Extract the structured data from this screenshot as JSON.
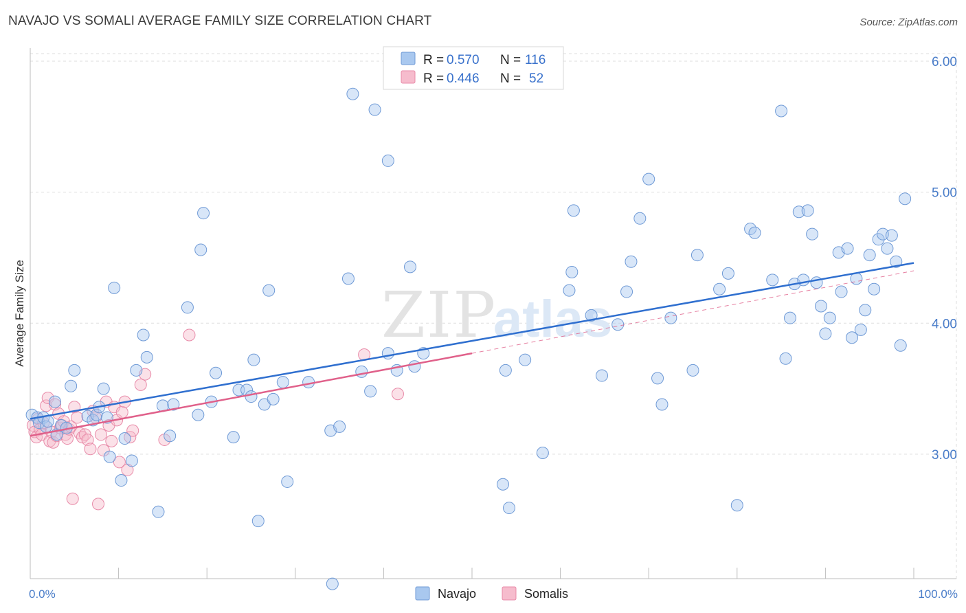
{
  "header": {
    "title": "NAVAJO VS SOMALI AVERAGE FAMILY SIZE CORRELATION CHART",
    "source": "Source: ZipAtlas.com"
  },
  "watermark": {
    "zip": "ZIP",
    "atlas": "atlas"
  },
  "colors": {
    "navajo_fill": "#a9c8ef",
    "navajo_stroke": "#6f9ad6",
    "navajo_line": "#2f6fcf",
    "somali_fill": "#f6bccd",
    "somali_stroke": "#e88aa8",
    "somali_line": "#e0608a",
    "grid": "#dddddd",
    "tick_text": "#4a7dc9"
  },
  "chart_data": {
    "type": "scatter",
    "title": "NAVAJO VS SOMALI AVERAGE FAMILY SIZE CORRELATION CHART",
    "xlabel": "",
    "ylabel": "Average Family Size",
    "xlim": [
      0,
      100
    ],
    "ylim": [
      2.05,
      6.1
    ],
    "x_tick_labels": [
      {
        "value": 0,
        "label": "0.0%"
      },
      {
        "value": 100,
        "label": "100.0%"
      }
    ],
    "y_ticks": [
      {
        "value": 3.0,
        "label": "3.00"
      },
      {
        "value": 4.0,
        "label": "4.00"
      },
      {
        "value": 5.0,
        "label": "5.00"
      },
      {
        "value": 6.0,
        "label": "6.00"
      }
    ],
    "legend": [
      {
        "r_label": "R =",
        "r": "0.570",
        "n_label": "N =",
        "n": "116"
      },
      {
        "r_label": "R =",
        "r": "0.446",
        "n_label": "N =",
        "n": "52"
      }
    ],
    "series": [
      {
        "name": "Navajo",
        "R": 0.57,
        "N": 116,
        "trend": {
          "x0": 0,
          "y0": 3.27,
          "x1": 100,
          "y1": 4.46
        },
        "points": [
          [
            0.2,
            3.3
          ],
          [
            0.8,
            3.28
          ],
          [
            1.0,
            3.24
          ],
          [
            1.5,
            3.28
          ],
          [
            1.8,
            3.21
          ],
          [
            2.0,
            3.25
          ],
          [
            2.8,
            3.4
          ],
          [
            3.0,
            3.15
          ],
          [
            3.5,
            3.22
          ],
          [
            4.1,
            3.2
          ],
          [
            4.6,
            3.52
          ],
          [
            5.0,
            3.64
          ],
          [
            6.5,
            3.29
          ],
          [
            7.1,
            3.26
          ],
          [
            7.5,
            3.3
          ],
          [
            7.8,
            3.36
          ],
          [
            8.3,
            3.5
          ],
          [
            8.7,
            3.28
          ],
          [
            9.0,
            2.98
          ],
          [
            9.5,
            4.27
          ],
          [
            10.3,
            2.8
          ],
          [
            10.7,
            3.12
          ],
          [
            11.5,
            2.95
          ],
          [
            12.0,
            3.64
          ],
          [
            12.8,
            3.91
          ],
          [
            13.2,
            3.74
          ],
          [
            14.5,
            2.56
          ],
          [
            15.0,
            3.37
          ],
          [
            15.8,
            3.14
          ],
          [
            16.2,
            3.38
          ],
          [
            17.8,
            4.12
          ],
          [
            19.0,
            3.3
          ],
          [
            19.3,
            4.56
          ],
          [
            19.6,
            4.84
          ],
          [
            20.5,
            3.4
          ],
          [
            21.0,
            3.62
          ],
          [
            23.0,
            3.13
          ],
          [
            23.6,
            3.49
          ],
          [
            24.5,
            3.49
          ],
          [
            25.0,
            3.44
          ],
          [
            25.3,
            3.72
          ],
          [
            25.8,
            2.49
          ],
          [
            26.5,
            3.38
          ],
          [
            27.0,
            4.25
          ],
          [
            27.5,
            3.42
          ],
          [
            28.6,
            3.55
          ],
          [
            29.1,
            2.79
          ],
          [
            31.5,
            3.55
          ],
          [
            34.0,
            3.18
          ],
          [
            34.2,
            2.01
          ],
          [
            35.0,
            3.21
          ],
          [
            36.0,
            4.34
          ],
          [
            36.5,
            5.75
          ],
          [
            37.5,
            3.63
          ],
          [
            38.5,
            3.48
          ],
          [
            39.0,
            5.63
          ],
          [
            40.5,
            3.77
          ],
          [
            40.5,
            5.24
          ],
          [
            41.5,
            3.64
          ],
          [
            43.0,
            4.43
          ],
          [
            43.5,
            3.67
          ],
          [
            44.5,
            3.77
          ],
          [
            53.5,
            2.77
          ],
          [
            53.8,
            3.64
          ],
          [
            54.2,
            2.59
          ],
          [
            56.0,
            3.72
          ],
          [
            58.0,
            3.01
          ],
          [
            61.0,
            4.25
          ],
          [
            61.3,
            4.39
          ],
          [
            61.5,
            4.86
          ],
          [
            63.5,
            4.06
          ],
          [
            64.7,
            3.6
          ],
          [
            66.5,
            3.99
          ],
          [
            67.5,
            4.24
          ],
          [
            68.0,
            4.47
          ],
          [
            69.0,
            4.8
          ],
          [
            70.0,
            5.1
          ],
          [
            71.0,
            3.58
          ],
          [
            71.5,
            3.38
          ],
          [
            72.5,
            4.04
          ],
          [
            75.0,
            3.64
          ],
          [
            75.5,
            4.52
          ],
          [
            78.0,
            4.26
          ],
          [
            79.0,
            4.38
          ],
          [
            80.0,
            2.61
          ],
          [
            81.5,
            4.72
          ],
          [
            82.0,
            4.69
          ],
          [
            84.0,
            4.33
          ],
          [
            85.0,
            5.62
          ],
          [
            85.5,
            3.73
          ],
          [
            86.0,
            4.04
          ],
          [
            86.5,
            4.3
          ],
          [
            87.0,
            4.85
          ],
          [
            87.5,
            4.33
          ],
          [
            88.0,
            4.86
          ],
          [
            88.5,
            4.68
          ],
          [
            89.0,
            4.31
          ],
          [
            89.5,
            4.13
          ],
          [
            90.0,
            3.92
          ],
          [
            90.5,
            4.04
          ],
          [
            91.5,
            4.54
          ],
          [
            91.8,
            4.24
          ],
          [
            92.5,
            4.57
          ],
          [
            93.0,
            3.89
          ],
          [
            93.5,
            4.34
          ],
          [
            94.0,
            3.95
          ],
          [
            94.5,
            4.1
          ],
          [
            95.0,
            4.52
          ],
          [
            95.5,
            4.26
          ],
          [
            96.0,
            4.64
          ],
          [
            96.5,
            4.68
          ],
          [
            97.0,
            4.57
          ],
          [
            97.5,
            4.67
          ],
          [
            98.0,
            4.47
          ],
          [
            98.5,
            3.83
          ],
          [
            99.0,
            4.95
          ]
        ]
      },
      {
        "name": "Somalis",
        "R": 0.446,
        "N": 52,
        "trend": {
          "x0": 0,
          "y0": 3.14,
          "x1": 50,
          "y1": 3.77
        },
        "trend_extension": {
          "x0": 50,
          "y0": 3.77,
          "x1": 100,
          "y1": 4.4
        },
        "points": [
          [
            0.3,
            3.22
          ],
          [
            0.5,
            3.17
          ],
          [
            0.7,
            3.13
          ],
          [
            0.9,
            3.27
          ],
          [
            1.1,
            3.19
          ],
          [
            1.3,
            3.15
          ],
          [
            1.5,
            3.24
          ],
          [
            1.8,
            3.37
          ],
          [
            2.0,
            3.43
          ],
          [
            2.2,
            3.1
          ],
          [
            2.4,
            3.17
          ],
          [
            2.6,
            3.09
          ],
          [
            2.8,
            3.38
          ],
          [
            3.0,
            3.14
          ],
          [
            3.2,
            3.31
          ],
          [
            3.4,
            3.2
          ],
          [
            3.6,
            3.22
          ],
          [
            3.8,
            3.25
          ],
          [
            4.0,
            3.15
          ],
          [
            4.2,
            3.12
          ],
          [
            4.4,
            3.19
          ],
          [
            4.6,
            3.21
          ],
          [
            4.8,
            2.66
          ],
          [
            5.0,
            3.36
          ],
          [
            5.3,
            3.28
          ],
          [
            5.6,
            3.16
          ],
          [
            5.9,
            3.13
          ],
          [
            6.2,
            3.15
          ],
          [
            6.5,
            3.11
          ],
          [
            6.8,
            3.04
          ],
          [
            7.1,
            3.33
          ],
          [
            7.4,
            3.28
          ],
          [
            7.7,
            2.62
          ],
          [
            8.0,
            3.15
          ],
          [
            8.3,
            3.03
          ],
          [
            8.6,
            3.4
          ],
          [
            8.9,
            3.22
          ],
          [
            9.2,
            3.1
          ],
          [
            9.5,
            3.36
          ],
          [
            9.8,
            3.26
          ],
          [
            10.1,
            2.94
          ],
          [
            10.4,
            3.32
          ],
          [
            10.7,
            3.4
          ],
          [
            11.0,
            2.88
          ],
          [
            11.3,
            3.13
          ],
          [
            11.6,
            3.18
          ],
          [
            12.5,
            3.53
          ],
          [
            13.0,
            3.61
          ],
          [
            15.2,
            3.11
          ],
          [
            18.0,
            3.91
          ],
          [
            37.8,
            3.76
          ],
          [
            41.6,
            3.46
          ]
        ]
      }
    ]
  }
}
